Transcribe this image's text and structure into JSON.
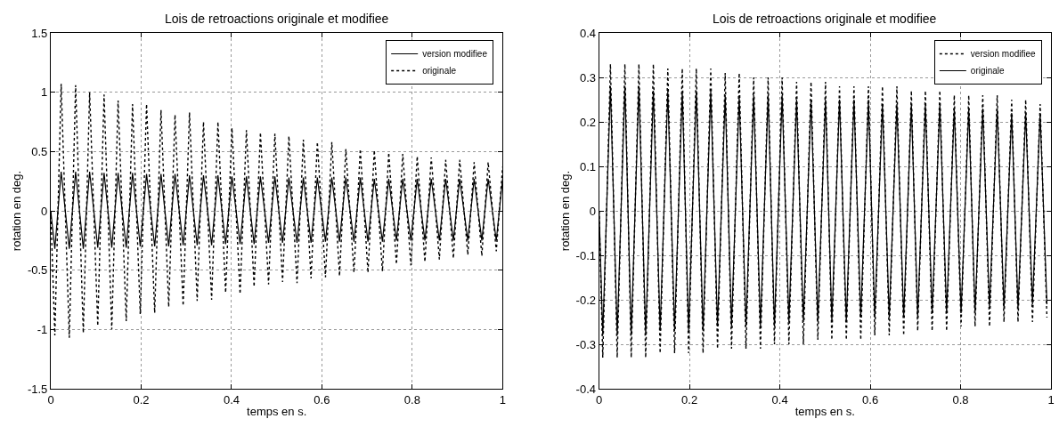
{
  "chart_data": [
    {
      "type": "line",
      "title": "Lois de retroactions originale et modifiee",
      "xlabel": "temps en s.",
      "ylabel": "rotation en deg.",
      "legend": "top right",
      "grid": true,
      "xlim": [
        0,
        1
      ],
      "ylim": [
        -1.5,
        1.5
      ],
      "xticks": [
        0,
        0.2,
        0.4,
        0.6,
        0.8,
        1
      ],
      "yticks": [
        -1.5,
        -1,
        -0.5,
        0,
        0.5,
        1,
        1.5
      ],
      "x": [
        0,
        0.009,
        0.023,
        0.041,
        0.055,
        0.072,
        0.086,
        0.104,
        0.118,
        0.135,
        0.149,
        0.167,
        0.181,
        0.198,
        0.212,
        0.23,
        0.244,
        0.261,
        0.275,
        0.293,
        0.307,
        0.324,
        0.338,
        0.356,
        0.37,
        0.387,
        0.401,
        0.419,
        0.433,
        0.45,
        0.464,
        0.482,
        0.496,
        0.513,
        0.527,
        0.545,
        0.559,
        0.576,
        0.59,
        0.608,
        0.622,
        0.639,
        0.653,
        0.671,
        0.685,
        0.702,
        0.716,
        0.734,
        0.748,
        0.765,
        0.779,
        0.797,
        0.811,
        0.828,
        0.842,
        0.86,
        0.874,
        0.891,
        0.905,
        0.923,
        0.937,
        0.954,
        0.968,
        0.986,
        1.0
      ],
      "series": [
        {
          "name": "version modifiee",
          "color": "#000000",
          "line_style": "solid",
          "values": [
            0,
            -0.32,
            0.33,
            -0.32,
            0.33,
            -0.32,
            0.33,
            -0.31,
            0.32,
            -0.31,
            0.32,
            -0.31,
            0.32,
            -0.3,
            0.31,
            -0.3,
            0.31,
            -0.3,
            0.31,
            -0.29,
            0.3,
            -0.29,
            0.3,
            -0.29,
            0.3,
            -0.28,
            0.29,
            -0.28,
            0.29,
            -0.28,
            0.29,
            -0.27,
            0.29,
            -0.27,
            0.28,
            -0.27,
            0.28,
            -0.27,
            0.28,
            -0.26,
            0.28,
            -0.26,
            0.28,
            -0.26,
            0.28,
            -0.26,
            0.27,
            -0.26,
            0.27,
            -0.25,
            0.27,
            -0.25,
            0.27,
            -0.25,
            0.27,
            -0.25,
            0.27,
            -0.25,
            0.27,
            -0.25,
            0.27,
            -0.25,
            0.27,
            -0.25,
            0.27
          ]
        },
        {
          "name": "originale",
          "color": "#000000",
          "line_style": "dotted",
          "values": [
            0,
            -1.05,
            1.07,
            -1.07,
            1.06,
            -1.03,
            1.0,
            -0.97,
            0.98,
            -1.0,
            0.93,
            -0.93,
            0.9,
            -0.87,
            0.9,
            -0.86,
            0.85,
            -0.81,
            0.81,
            -0.8,
            0.83,
            -0.76,
            0.75,
            -0.75,
            0.75,
            -0.69,
            0.7,
            -0.7,
            0.68,
            -0.64,
            0.66,
            -0.62,
            0.65,
            -0.6,
            0.63,
            -0.61,
            0.6,
            -0.57,
            0.58,
            -0.56,
            0.58,
            -0.55,
            0.52,
            -0.52,
            0.52,
            -0.52,
            0.51,
            -0.51,
            0.49,
            -0.45,
            0.48,
            -0.46,
            0.46,
            -0.43,
            0.45,
            -0.41,
            0.43,
            -0.4,
            0.43,
            -0.37,
            0.41,
            -0.38,
            0.41,
            -0.34,
            0.37
          ]
        }
      ]
    },
    {
      "type": "line",
      "title": "Lois de retroactions originale et modifiee",
      "xlabel": "temps en s.",
      "ylabel": "rotation en deg.",
      "legend": "top right",
      "grid": true,
      "xlim": [
        0,
        1
      ],
      "ylim": [
        -0.4,
        0.4
      ],
      "xticks": [
        0,
        0.2,
        0.4,
        0.6,
        0.8,
        1
      ],
      "yticks": [
        -0.4,
        -0.3,
        -0.2,
        -0.1,
        0,
        0.1,
        0.2,
        0.3,
        0.4
      ],
      "x": [
        0,
        0.008,
        0.025,
        0.04,
        0.057,
        0.071,
        0.088,
        0.103,
        0.12,
        0.135,
        0.152,
        0.167,
        0.184,
        0.198,
        0.215,
        0.23,
        0.247,
        0.262,
        0.279,
        0.293,
        0.31,
        0.325,
        0.342,
        0.357,
        0.374,
        0.388,
        0.405,
        0.42,
        0.437,
        0.452,
        0.469,
        0.484,
        0.501,
        0.515,
        0.532,
        0.547,
        0.564,
        0.579,
        0.596,
        0.61,
        0.627,
        0.642,
        0.659,
        0.674,
        0.691,
        0.705,
        0.722,
        0.737,
        0.754,
        0.769,
        0.786,
        0.801,
        0.818,
        0.832,
        0.849,
        0.864,
        0.881,
        0.896,
        0.913,
        0.927,
        0.944,
        0.959,
        0.976,
        0.991
      ],
      "series": [
        {
          "name": "version modifiee",
          "color": "#000000",
          "line_style": "dotted",
          "values": [
            0,
            -0.33,
            0.33,
            -0.33,
            0.33,
            -0.33,
            0.33,
            -0.33,
            0.33,
            -0.32,
            0.32,
            -0.32,
            0.32,
            -0.32,
            0.32,
            -0.32,
            0.32,
            -0.31,
            0.31,
            -0.31,
            0.31,
            -0.31,
            0.3,
            -0.31,
            0.3,
            -0.3,
            0.3,
            -0.3,
            0.29,
            -0.3,
            0.29,
            -0.29,
            0.29,
            -0.29,
            0.28,
            -0.29,
            0.28,
            -0.29,
            0.28,
            -0.28,
            0.28,
            -0.28,
            0.28,
            -0.28,
            0.27,
            -0.27,
            0.27,
            -0.27,
            0.27,
            -0.27,
            0.26,
            -0.26,
            0.26,
            -0.26,
            0.26,
            -0.26,
            0.26,
            -0.25,
            0.25,
            -0.25,
            0.25,
            -0.25,
            0.24,
            -0.24
          ]
        },
        {
          "name": "originale",
          "color": "#000000",
          "line_style": "solid",
          "values": [
            0,
            -0.28,
            0.28,
            -0.28,
            0.28,
            -0.28,
            0.28,
            -0.28,
            0.27,
            -0.27,
            0.27,
            -0.27,
            0.27,
            -0.27,
            0.27,
            -0.27,
            0.27,
            -0.26,
            0.26,
            -0.26,
            0.26,
            -0.26,
            0.26,
            -0.26,
            0.26,
            -0.26,
            0.26,
            -0.25,
            0.25,
            -0.25,
            0.25,
            -0.25,
            0.25,
            -0.25,
            0.25,
            -0.25,
            0.25,
            -0.24,
            0.25,
            -0.24,
            0.24,
            -0.24,
            0.24,
            -0.24,
            0.24,
            -0.24,
            0.24,
            -0.23,
            0.24,
            -0.23,
            0.23,
            -0.23,
            0.23,
            -0.23,
            0.23,
            -0.22,
            0.23,
            -0.22,
            0.22,
            -0.22,
            0.22,
            -0.21,
            0.22,
            -0.21
          ]
        }
      ]
    }
  ]
}
